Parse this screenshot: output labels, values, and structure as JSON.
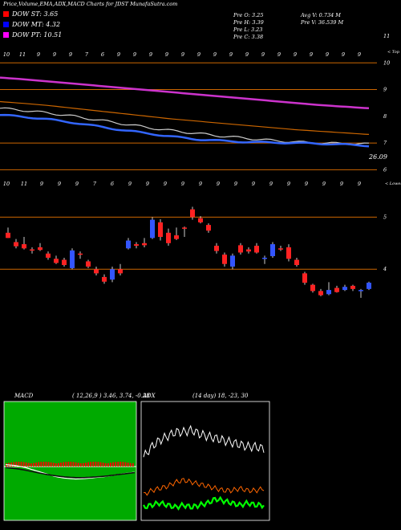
{
  "header": {
    "title": "Price,Volume,EMA,ADX,MACD Charts for JDST MunafaSutra.com",
    "dow": [
      {
        "label": "DOW ST: 3.65",
        "color": "#ff0000"
      },
      {
        "label": "DOW MT: 4.32",
        "color": "#0000ff"
      },
      {
        "label": "DOW PT: 10.51",
        "color": "#ff00ff"
      }
    ],
    "stats_left": [
      "Pre  O: 3.25",
      "Pre  H: 3.39",
      "Pre  L: 3.23",
      "Pre  C: 3.38"
    ],
    "stats_right": [
      "Avg V: 0.734  M",
      "Pre  V: 36.539 M"
    ]
  },
  "ema_panel": {
    "top_dates": [
      "10",
      "11",
      "9",
      "9",
      "9",
      "7",
      "6",
      "9",
      "9",
      "9",
      "9",
      "9",
      "9",
      "9",
      "9",
      "9",
      "9",
      "9",
      "9",
      "9",
      "9",
      "9",
      "9"
    ],
    "right_labels": [
      "11",
      "10",
      "9",
      "8",
      "7",
      "6"
    ],
    "top_note": "< Top",
    "low_note": "< Lowes",
    "last_value": "26.09",
    "hlines": [
      10,
      9,
      7,
      6
    ],
    "colors": {
      "purple": "#cc33cc",
      "blue": "#3366ff",
      "orange": "#cc6600",
      "grey": "#cccccc",
      "hline": "#cc6600"
    }
  },
  "price_panel": {
    "top_dates": [
      "10",
      "11",
      "9",
      "9",
      "9",
      "7",
      "6",
      "9",
      "9",
      "9",
      "9",
      "9",
      "9",
      "9",
      "9",
      "9",
      "9",
      "9",
      "9",
      "9",
      "9"
    ],
    "right_labels": [
      "5",
      "4"
    ],
    "hlines": [
      5,
      4
    ],
    "colors": {
      "up": "#3355ff",
      "down": "#ff2222",
      "hline": "#cc6600"
    }
  },
  "macd": {
    "label": "MACD",
    "params": "( 12,26,9 ) 3.46, 3.74, -0.28",
    "bar_color": "#ff0000",
    "bg_color": "#00aa00"
  },
  "adx": {
    "label": "ADX",
    "params": "(14  day) 18, -23, 30",
    "colors": {
      "di_plus": "#00ff00",
      "di_minus": "#ff6600",
      "adx": "#ffffff"
    }
  },
  "chart_data": {
    "type": "candlestick",
    "title": "Price,Volume,EMA,ADX,MACD Charts for JDST MunafaSutra.com",
    "ylabel": "",
    "ylim": [
      3,
      5
    ],
    "grid": false,
    "legend": "top-left",
    "candles": [
      {
        "o": 4.7,
        "h": 4.8,
        "l": 4.6,
        "c": 4.6
      },
      {
        "o": 4.52,
        "h": 4.58,
        "l": 4.4,
        "c": 4.44
      },
      {
        "o": 4.48,
        "h": 4.62,
        "l": 4.38,
        "c": 4.4
      },
      {
        "o": 4.38,
        "h": 4.42,
        "l": 4.3,
        "c": 4.36
      },
      {
        "o": 4.42,
        "h": 4.5,
        "l": 4.35,
        "c": 4.37
      },
      {
        "o": 4.3,
        "h": 4.34,
        "l": 4.18,
        "c": 4.22
      },
      {
        "o": 4.2,
        "h": 4.26,
        "l": 4.1,
        "c": 4.12
      },
      {
        "o": 4.18,
        "h": 4.22,
        "l": 4.05,
        "c": 4.08
      },
      {
        "o": 4.02,
        "h": 4.4,
        "l": 4.0,
        "c": 4.36
      },
      {
        "o": 4.3,
        "h": 4.34,
        "l": 4.2,
        "c": 4.28
      },
      {
        "o": 4.15,
        "h": 4.18,
        "l": 4.02,
        "c": 4.05
      },
      {
        "o": 4.0,
        "h": 4.05,
        "l": 3.88,
        "c": 3.92
      },
      {
        "o": 3.85,
        "h": 3.9,
        "l": 3.72,
        "c": 3.76
      },
      {
        "o": 3.8,
        "h": 4.05,
        "l": 3.75,
        "c": 4.0
      },
      {
        "o": 4.0,
        "h": 4.1,
        "l": 3.88,
        "c": 3.92
      },
      {
        "o": 4.4,
        "h": 4.6,
        "l": 4.38,
        "c": 4.55
      },
      {
        "o": 4.48,
        "h": 4.52,
        "l": 4.4,
        "c": 4.45
      },
      {
        "o": 4.5,
        "h": 4.6,
        "l": 4.42,
        "c": 4.46
      },
      {
        "o": 4.6,
        "h": 5.0,
        "l": 4.58,
        "c": 4.95
      },
      {
        "o": 4.9,
        "h": 4.96,
        "l": 4.55,
        "c": 4.62
      },
      {
        "o": 4.7,
        "h": 4.78,
        "l": 4.45,
        "c": 4.5
      },
      {
        "o": 4.65,
        "h": 4.8,
        "l": 4.56,
        "c": 4.58
      },
      {
        "o": 4.8,
        "h": 4.82,
        "l": 4.62,
        "c": 4.78
      },
      {
        "o": 5.15,
        "h": 5.2,
        "l": 4.95,
        "c": 5.0
      },
      {
        "o": 4.98,
        "h": 5.02,
        "l": 4.88,
        "c": 4.9
      },
      {
        "o": 4.85,
        "h": 4.88,
        "l": 4.7,
        "c": 4.74
      },
      {
        "o": 4.45,
        "h": 4.5,
        "l": 4.3,
        "c": 4.35
      },
      {
        "o": 4.28,
        "h": 4.32,
        "l": 4.05,
        "c": 4.1
      },
      {
        "o": 4.05,
        "h": 4.3,
        "l": 4.0,
        "c": 4.26
      },
      {
        "o": 4.46,
        "h": 4.5,
        "l": 4.28,
        "c": 4.32
      },
      {
        "o": 4.38,
        "h": 4.42,
        "l": 4.3,
        "c": 4.34
      },
      {
        "o": 4.45,
        "h": 4.5,
        "l": 4.3,
        "c": 4.32
      },
      {
        "o": 4.2,
        "h": 4.26,
        "l": 4.1,
        "c": 4.22
      },
      {
        "o": 4.25,
        "h": 4.52,
        "l": 4.22,
        "c": 4.48
      },
      {
        "o": 4.4,
        "h": 4.45,
        "l": 4.35,
        "c": 4.38
      },
      {
        "o": 4.42,
        "h": 4.48,
        "l": 4.15,
        "c": 4.2
      },
      {
        "o": 4.18,
        "h": 4.22,
        "l": 4.05,
        "c": 4.08
      },
      {
        "o": 3.92,
        "h": 3.95,
        "l": 3.7,
        "c": 3.74
      },
      {
        "o": 3.7,
        "h": 3.72,
        "l": 3.55,
        "c": 3.58
      },
      {
        "o": 3.58,
        "h": 3.62,
        "l": 3.48,
        "c": 3.5
      },
      {
        "o": 3.52,
        "h": 3.75,
        "l": 3.5,
        "c": 3.6
      },
      {
        "o": 3.64,
        "h": 3.68,
        "l": 3.55,
        "c": 3.56
      },
      {
        "o": 3.6,
        "h": 3.7,
        "l": 3.58,
        "c": 3.66
      },
      {
        "o": 3.68,
        "h": 3.7,
        "l": 3.58,
        "c": 3.62
      },
      {
        "o": 3.58,
        "h": 3.62,
        "l": 3.45,
        "c": 3.6
      },
      {
        "o": 3.62,
        "h": 3.76,
        "l": 3.6,
        "c": 3.74
      }
    ],
    "ema_ylim": [
      5.5,
      11
    ],
    "ema_series": [
      {
        "name": "",
        "color": "#cc33cc",
        "values": [
          9.45,
          9.38,
          9.3,
          9.22,
          9.14,
          9.06,
          8.98,
          8.9,
          8.82,
          8.74,
          8.66,
          8.58,
          8.5,
          8.42,
          8.36,
          8.3
        ]
      },
      {
        "name": "",
        "color": "#cc6600",
        "values": [
          8.55,
          8.48,
          8.4,
          8.3,
          8.2,
          8.1,
          8.0,
          7.9,
          7.82,
          7.74,
          7.66,
          7.58,
          7.5,
          7.44,
          7.38,
          7.32
        ]
      },
      {
        "name": "",
        "color": "#cccccc",
        "values": [
          8.3,
          8.22,
          8.12,
          8.0,
          7.86,
          7.72,
          7.58,
          7.46,
          7.36,
          7.26,
          7.18,
          7.1,
          7.04,
          7.0,
          6.98,
          6.96
        ]
      },
      {
        "name": "",
        "color": "#3366ff",
        "values": [
          8.05,
          7.98,
          7.88,
          7.76,
          7.62,
          7.48,
          7.36,
          7.24,
          7.14,
          7.08,
          7.04,
          7.02,
          7.0,
          6.98,
          6.94,
          6.9
        ]
      }
    ],
    "macd_series": [
      {
        "name": "",
        "values": [
          -0.1,
          -0.05,
          0.05,
          0.2,
          0.35,
          0.5,
          0.58,
          0.62,
          0.6,
          0.55,
          0.5,
          0.42,
          0.35,
          0.28
        ]
      },
      {
        "name": "",
        "values": [
          0.05,
          0.1,
          0.18,
          0.28,
          0.38,
          0.46,
          0.52,
          0.55,
          0.55,
          0.52,
          0.48,
          0.42,
          0.36,
          0.3
        ]
      }
    ],
    "adx_series": [
      {
        "name": "",
        "color": "#ffffff",
        "values": [
          28,
          33,
          36,
          38,
          40,
          40,
          41,
          39,
          38,
          37,
          36,
          35,
          34,
          33,
          33,
          32
        ]
      },
      {
        "name": "",
        "color": "#ff6600",
        "values": [
          10,
          12,
          13,
          14,
          16,
          17,
          16,
          15,
          14,
          13,
          12,
          12,
          13,
          12,
          12,
          13
        ]
      },
      {
        "name": "",
        "color": "#00ff00",
        "values": [
          4,
          5,
          6,
          5,
          4,
          5,
          4,
          5,
          6,
          8,
          7,
          6,
          5,
          6,
          5,
          5
        ]
      }
    ]
  }
}
